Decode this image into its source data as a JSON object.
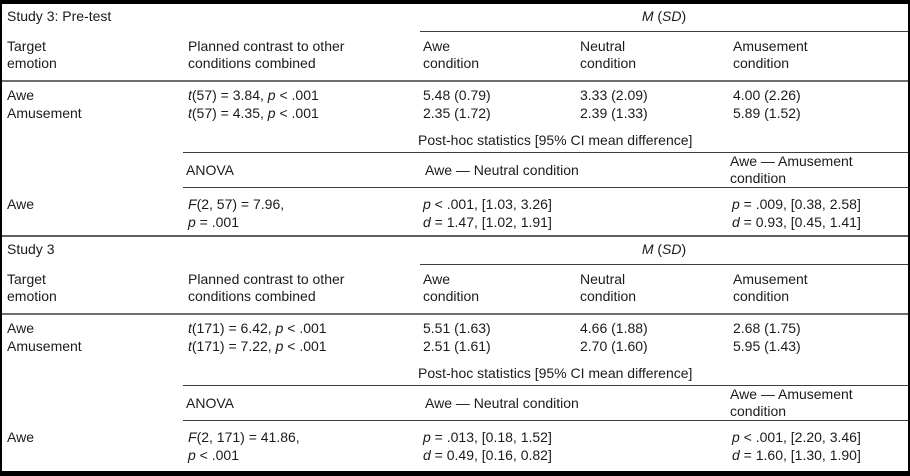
{
  "table": {
    "sections": [
      {
        "study_label": "Study 3: Pre-test",
        "msd_header": [
          [
            "i",
            "M"
          ],
          [
            "n",
            " ("
          ],
          [
            "i",
            "SD"
          ],
          [
            "n",
            ")"
          ]
        ],
        "col_headers": [
          "Target\nemotion",
          "Planned contrast to other\nconditions combined",
          "Awe\ncondition",
          "Neutral\ncondition",
          "Amusement\ncondition"
        ],
        "rows": [
          {
            "emotion": "Awe",
            "contrast": [
              [
                "i",
                "t"
              ],
              [
                "n",
                "(57) = 3.84, "
              ],
              [
                "i",
                "p"
              ],
              [
                "n",
                " < .001"
              ]
            ],
            "means": [
              "5.48 (0.79)",
              "3.33 (2.09)",
              "4.00 (2.26)"
            ]
          },
          {
            "emotion": "Amusement",
            "contrast": [
              [
                "i",
                "t"
              ],
              [
                "n",
                "(57) = 4.35, "
              ],
              [
                "i",
                "p"
              ],
              [
                "n",
                " < .001"
              ]
            ],
            "means": [
              "2.35 (1.72)",
              "2.39 (1.33)",
              "5.89 (1.52)"
            ]
          }
        ],
        "posthoc_label": "Post-hoc statistics [95% CI mean difference]",
        "anova_label": "ANOVA",
        "contrast_cols": [
          "Awe — Neutral condition",
          "Awe — Amusement condition"
        ],
        "anova_row": {
          "emotion": "Awe",
          "f": [
            [
              "i",
              "F"
            ],
            [
              "n",
              "(2, 57) = 7.96,\n"
            ],
            [
              "i",
              "p"
            ],
            [
              "n",
              " = .001"
            ]
          ],
          "neutral": [
            [
              "i",
              "p"
            ],
            [
              "n",
              " < .001, [1.03, 3.26]\n"
            ],
            [
              "i",
              "d"
            ],
            [
              "n",
              " = 1.47, [1.02, 1.91]"
            ]
          ],
          "amusement": [
            [
              "i",
              "p"
            ],
            [
              "n",
              " = .009, [0.38, 2.58]\n"
            ],
            [
              "i",
              "d"
            ],
            [
              "n",
              " = 0.93, [0.45, 1.41]"
            ]
          ]
        }
      },
      {
        "study_label": "Study 3",
        "msd_header": [
          [
            "i",
            "M"
          ],
          [
            "n",
            " ("
          ],
          [
            "i",
            "SD"
          ],
          [
            "n",
            ")"
          ]
        ],
        "col_headers": [
          "Target\nemotion",
          "Planned contrast to other\nconditions combined",
          "Awe\ncondition",
          "Neutral\ncondition",
          "Amusement\ncondition"
        ],
        "rows": [
          {
            "emotion": "Awe",
            "contrast": [
              [
                "i",
                "t"
              ],
              [
                "n",
                "(171) = 6.42, "
              ],
              [
                "i",
                "p"
              ],
              [
                "n",
                " < .001"
              ]
            ],
            "means": [
              "5.51 (1.63)",
              "4.66 (1.88)",
              "2.68 (1.75)"
            ]
          },
          {
            "emotion": "Amusement",
            "contrast": [
              [
                "i",
                "t"
              ],
              [
                "n",
                "(171) = 7.22, "
              ],
              [
                "i",
                "p"
              ],
              [
                "n",
                " < .001"
              ]
            ],
            "means": [
              "2.51 (1.61)",
              "2.70 (1.60)",
              "5.95 (1.43)"
            ]
          }
        ],
        "posthoc_label": "Post-hoc statistics [95% CI mean difference]",
        "anova_label": "ANOVA",
        "contrast_cols": [
          "Awe — Neutral condition",
          "Awe — Amusement condition"
        ],
        "anova_row": {
          "emotion": "Awe",
          "f": [
            [
              "i",
              "F"
            ],
            [
              "n",
              "(2, 171) = 41.86,\n"
            ],
            [
              "i",
              "p"
            ],
            [
              "n",
              " < .001"
            ]
          ],
          "neutral": [
            [
              "i",
              "p"
            ],
            [
              "n",
              " = .013, [0.18, 1.52]\n"
            ],
            [
              "i",
              "d"
            ],
            [
              "n",
              " = 0.49, [0.16, 0.82]"
            ]
          ],
          "amusement": [
            [
              "i",
              "p"
            ],
            [
              "n",
              " < .001, [2.20, 3.46]\n"
            ],
            [
              "i",
              "d"
            ],
            [
              "n",
              " = 1.60, [1.30, 1.90]"
            ]
          ]
        }
      }
    ]
  }
}
